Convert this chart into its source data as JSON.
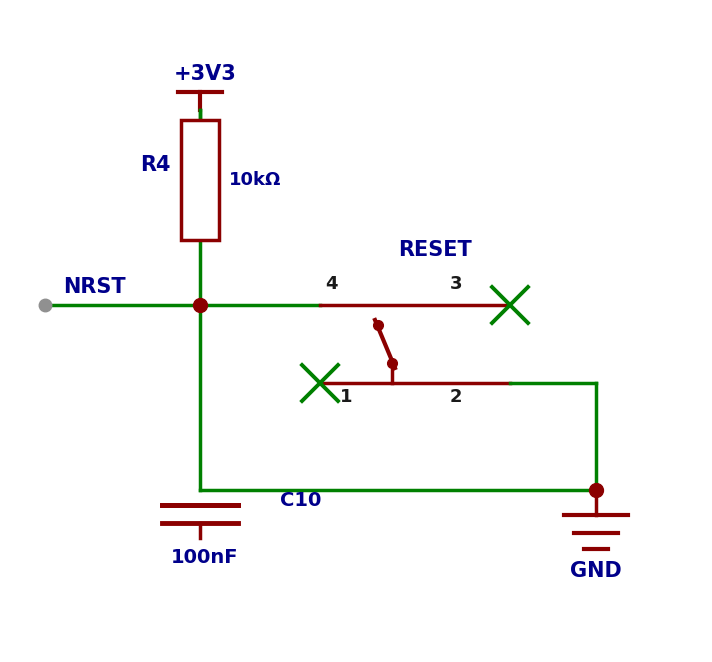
{
  "bg_color": "#ffffff",
  "wire_color": "#008000",
  "component_color": "#8b0000",
  "label_color": "#00008b",
  "text_color": "#1a1a1a",
  "junction_color": "#8b0000",
  "figsize": [
    7.12,
    6.62
  ],
  "dpi": 100,
  "labels": {
    "power": "+3V3",
    "r_name": "R4",
    "r_value": "10kΩ",
    "nrst": "NRST",
    "reset": "RESET",
    "sw_pin4": "4",
    "sw_pin3": "3",
    "sw_pin1": "1",
    "sw_pin2": "2",
    "c_name": "C10",
    "c_value": "100nF",
    "gnd": "GND"
  }
}
